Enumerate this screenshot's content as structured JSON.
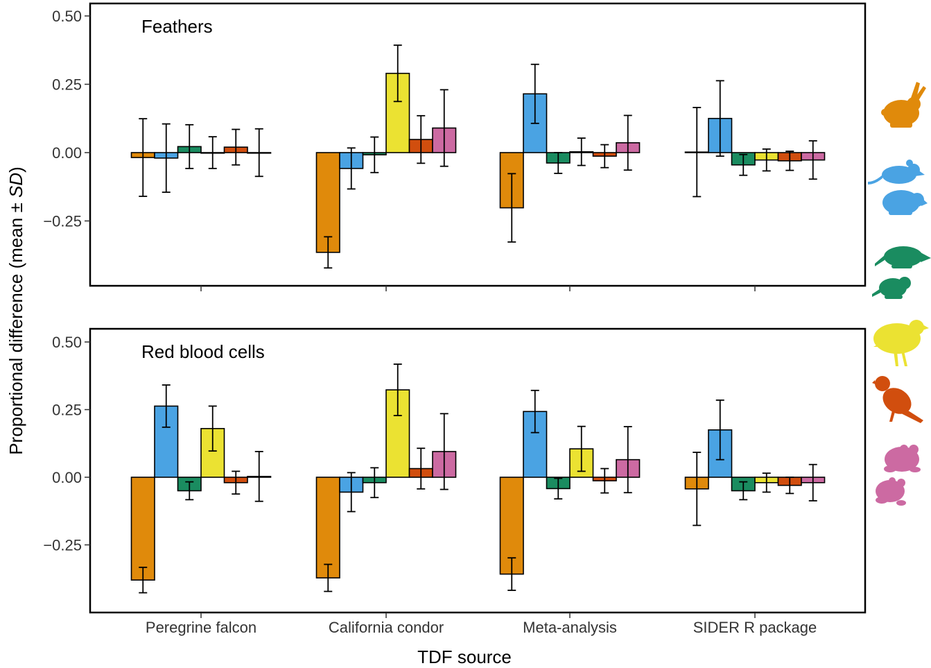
{
  "chart_data": {
    "type": "bar",
    "xlabel": "TDF source",
    "ylabel": "Proportional difference (mean ± SD)",
    "ylabel_parts": {
      "prefix": "Proportional difference (mean ± ",
      "italic": "SD",
      "suffix": ")"
    },
    "categories": [
      "Peregrine falcon",
      "California condor",
      "Meta-analysis",
      "SIDER R package"
    ],
    "ylim": [
      -0.48,
      0.53
    ],
    "yticks": [
      0.5,
      0.25,
      0.0,
      -0.25
    ],
    "ytick_labels": [
      "0.50",
      "0.25",
      "0.00",
      "−0.25"
    ],
    "series_colors": [
      "#E08A0B",
      "#4AA3E3",
      "#1A8C60",
      "#EBE232",
      "#D14E0E",
      "#CC6AA2"
    ],
    "series_icons": [
      "rabbit-icon",
      "rodent-icon",
      "shrew-icon",
      "quail-icon",
      "thrush-icon",
      "toad-icon"
    ],
    "panels": [
      {
        "title": "Feathers",
        "means": [
          [
            -0.018,
            -0.02,
            0.022,
            0.0,
            0.02,
            0.0
          ],
          [
            -0.365,
            -0.058,
            -0.008,
            0.29,
            0.048,
            0.09
          ],
          [
            -0.202,
            0.215,
            -0.038,
            0.003,
            -0.013,
            0.036
          ],
          [
            0.002,
            0.125,
            -0.045,
            -0.027,
            -0.03,
            -0.027
          ]
        ],
        "sd": [
          [
            0.142,
            0.125,
            0.08,
            0.058,
            0.065,
            0.087
          ],
          [
            0.057,
            0.075,
            0.065,
            0.103,
            0.087,
            0.14
          ],
          [
            0.125,
            0.108,
            0.038,
            0.05,
            0.042,
            0.1
          ],
          [
            0.163,
            0.138,
            0.038,
            0.04,
            0.035,
            0.07
          ]
        ]
      },
      {
        "title": "Red blood cells",
        "means": [
          [
            -0.38,
            0.263,
            -0.05,
            0.18,
            -0.02,
            0.003
          ],
          [
            -0.372,
            -0.055,
            -0.02,
            0.323,
            0.032,
            0.095
          ],
          [
            -0.358,
            0.243,
            -0.042,
            0.105,
            -0.013,
            0.065
          ],
          [
            -0.043,
            0.175,
            -0.05,
            -0.02,
            -0.03,
            -0.02
          ]
        ],
        "sd": [
          [
            0.047,
            0.078,
            0.033,
            0.083,
            0.042,
            0.092
          ],
          [
            0.05,
            0.072,
            0.055,
            0.095,
            0.075,
            0.14
          ],
          [
            0.06,
            0.078,
            0.038,
            0.083,
            0.045,
            0.122
          ],
          [
            0.135,
            0.11,
            0.033,
            0.035,
            0.03,
            0.067
          ]
        ]
      }
    ]
  }
}
